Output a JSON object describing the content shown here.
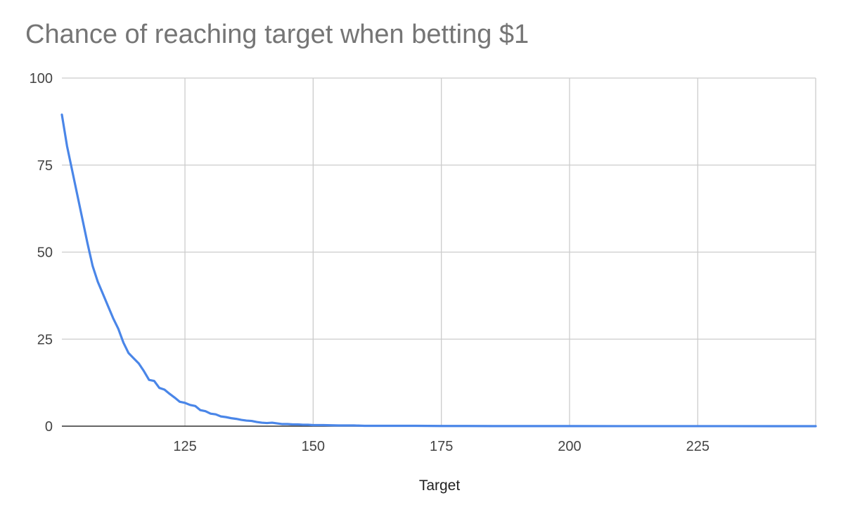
{
  "chart_data": {
    "type": "line",
    "title": "Chance of reaching target when betting $1",
    "xlabel": "Target",
    "ylabel": "",
    "xlim": [
      101,
      248
    ],
    "ylim": [
      0,
      100
    ],
    "x_ticks": [
      125,
      150,
      175,
      200,
      225
    ],
    "y_ticks": [
      0,
      25,
      50,
      75,
      100
    ],
    "grid": true,
    "legend": "none",
    "series": [
      {
        "color": "#4a86e8",
        "x": [
          101,
          102,
          103,
          104,
          105,
          106,
          107,
          108,
          109,
          110,
          111,
          112,
          113,
          114,
          115,
          116,
          117,
          118,
          119,
          120,
          121,
          122,
          123,
          124,
          125,
          126,
          127,
          128,
          129,
          130,
          131,
          132,
          133,
          134,
          135,
          136,
          137,
          138,
          139,
          140,
          141,
          142,
          143,
          144,
          145,
          146,
          147,
          148,
          149,
          150,
          152,
          155,
          158,
          160,
          165,
          170,
          175,
          180,
          185,
          190,
          195,
          200,
          210,
          220,
          230,
          240,
          248
        ],
        "y": [
          89.5,
          80.5,
          73.5,
          66.5,
          59.5,
          52.5,
          46.0,
          41.5,
          38.0,
          34.5,
          31.0,
          28.0,
          24.0,
          21.0,
          19.5,
          18.0,
          15.8,
          13.3,
          13.0,
          11.0,
          10.5,
          9.3,
          8.2,
          7.0,
          6.7,
          6.1,
          5.8,
          4.6,
          4.3,
          3.6,
          3.4,
          2.8,
          2.6,
          2.3,
          2.1,
          1.8,
          1.6,
          1.5,
          1.2,
          1.0,
          0.9,
          1.0,
          0.8,
          0.6,
          0.6,
          0.5,
          0.5,
          0.4,
          0.4,
          0.3,
          0.3,
          0.2,
          0.2,
          0.1,
          0.1,
          0.1,
          0.05,
          0.05,
          0.03,
          0.03,
          0.02,
          0.02,
          0.01,
          0.01,
          0.01,
          0.0,
          0.0
        ]
      }
    ]
  }
}
